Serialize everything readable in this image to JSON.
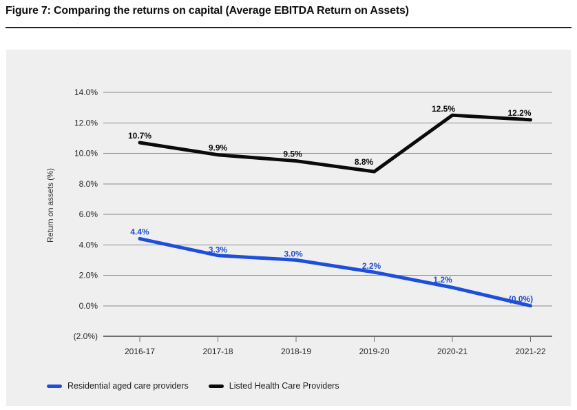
{
  "figure": {
    "title": "Figure 7: Comparing the returns on capital (Average EBITDA Return on Assets)"
  },
  "chart_data": {
    "type": "line",
    "title": "Figure 7: Comparing the returns on capital (Average EBITDA Return on Assets)",
    "ylabel": "Return on assets (%)",
    "xlabel": "",
    "categories": [
      "2016-17",
      "2017-18",
      "2018-19",
      "2019-20",
      "2020-21",
      "2021-22"
    ],
    "series": [
      {
        "name": "Residential aged care providers",
        "color": "#1e4fd9",
        "values": [
          4.4,
          3.3,
          3.0,
          2.2,
          1.2,
          0.0
        ],
        "point_labels": [
          "4.4%",
          "3.3%",
          "3.0%",
          "2.2%",
          "1.2%",
          "(0.0%)"
        ],
        "label_dx": [
          0,
          0,
          -4,
          -4,
          -14,
          -14
        ],
        "label_dy": [
          -6,
          -4,
          -5,
          -5,
          -7,
          -6
        ]
      },
      {
        "name": "Listed Health Care Providers",
        "color": "#0b0b0b",
        "values": [
          10.7,
          9.9,
          9.5,
          8.8,
          12.5,
          12.2
        ],
        "point_labels": [
          "10.7%",
          "9.9%",
          "9.5%",
          "8.8%",
          "12.5%",
          "12.2%"
        ],
        "label_dx": [
          0,
          0,
          -5,
          -15,
          -13,
          -16
        ],
        "label_dy": [
          -6,
          -6,
          -6,
          -10,
          -5,
          -6
        ]
      }
    ],
    "ylim": [
      -2,
      14
    ],
    "ytick_step": 2,
    "ytick_labels_top_to_bottom": [
      "14.0%",
      "12.0%",
      "10.0%",
      "8.0%",
      "6.0%",
      "4.0%",
      "2.0%",
      "0.0%",
      "(2.0%)"
    ],
    "grid": true,
    "legend_position": "bottom-left",
    "panel_background": "#efefef",
    "gridline_color": "#8a8a8a",
    "axis_color": "#6e6e6e",
    "tick_label_color": "#262626"
  }
}
